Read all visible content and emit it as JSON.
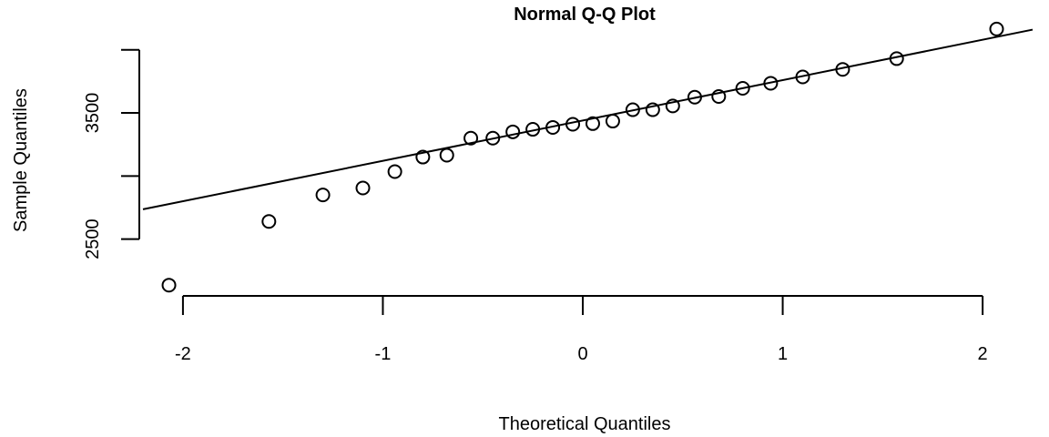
{
  "chart_data": {
    "type": "scatter",
    "title": "Normal Q-Q Plot",
    "xlabel": "Theoretical Quantiles",
    "ylabel": "Sample Quantiles",
    "xlim": [
      -2.2,
      2.25
    ],
    "ylim": [
      2050,
      4200
    ],
    "x_ticks": [
      -2,
      -1,
      0,
      1,
      2
    ],
    "x_tick_labels": [
      "-2",
      "-1",
      "0",
      "1",
      "2"
    ],
    "y_ticks": [
      2500,
      3000,
      3500,
      4000
    ],
    "y_tick_labels": [
      "2500",
      "",
      "3500",
      ""
    ],
    "grid": false,
    "legend": "none",
    "points": [
      {
        "x": -2.07,
        "y": 2135
      },
      {
        "x": -1.57,
        "y": 2640
      },
      {
        "x": -1.3,
        "y": 2850
      },
      {
        "x": -1.1,
        "y": 2905
      },
      {
        "x": -0.94,
        "y": 3035
      },
      {
        "x": -0.8,
        "y": 3150
      },
      {
        "x": -0.68,
        "y": 3165
      },
      {
        "x": -0.56,
        "y": 3300
      },
      {
        "x": -0.45,
        "y": 3300
      },
      {
        "x": -0.35,
        "y": 3350
      },
      {
        "x": -0.25,
        "y": 3370
      },
      {
        "x": -0.15,
        "y": 3385
      },
      {
        "x": -0.05,
        "y": 3410
      },
      {
        "x": 0.05,
        "y": 3415
      },
      {
        "x": 0.15,
        "y": 3435
      },
      {
        "x": 0.25,
        "y": 3525
      },
      {
        "x": 0.35,
        "y": 3525
      },
      {
        "x": 0.45,
        "y": 3555
      },
      {
        "x": 0.56,
        "y": 3625
      },
      {
        "x": 0.68,
        "y": 3630
      },
      {
        "x": 0.8,
        "y": 3695
      },
      {
        "x": 0.94,
        "y": 3735
      },
      {
        "x": 1.1,
        "y": 3785
      },
      {
        "x": 1.3,
        "y": 3845
      },
      {
        "x": 1.57,
        "y": 3930
      },
      {
        "x": 2.07,
        "y": 4165
      }
    ],
    "reference_line": {
      "intercept": 3440,
      "slope": 320
    }
  }
}
